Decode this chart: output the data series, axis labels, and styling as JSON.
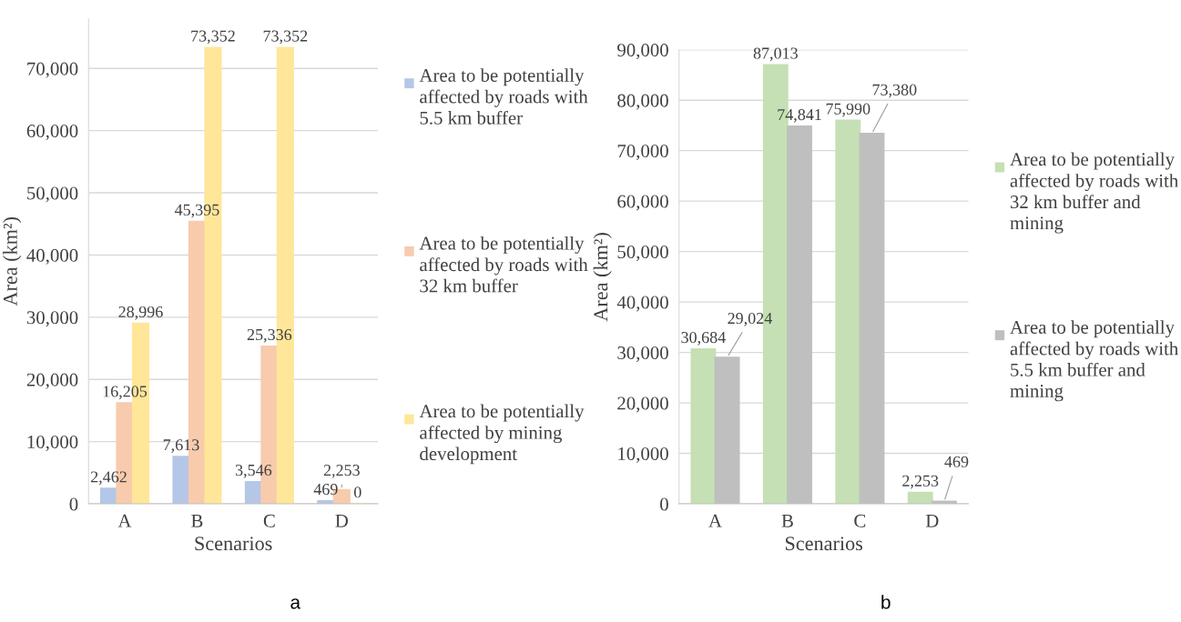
{
  "chart_data": [
    {
      "type": "bar",
      "categories": [
        "A",
        "B",
        "C",
        "D"
      ],
      "xlabel": "Scenarios",
      "ylabel": "Area (km²)",
      "ylim": [
        0,
        78000
      ],
      "yticks": [
        {
          "value": 0,
          "label": "0"
        },
        {
          "value": 10000,
          "label": "10,000"
        },
        {
          "value": 20000,
          "label": "20,000"
        },
        {
          "value": 30000,
          "label": "30,000"
        },
        {
          "value": 40000,
          "label": "40,000"
        },
        {
          "value": 50000,
          "label": "50,000"
        },
        {
          "value": 60000,
          "label": "60,000"
        },
        {
          "value": 70000,
          "label": "70,000"
        }
      ],
      "grid": "y",
      "legend": "right",
      "annotations": [
        "a"
      ],
      "series": [
        {
          "name": "Area to be potentially affected by roads with 5.5 km buffer",
          "color": "#b4c7e7",
          "values": [
            2462,
            7613,
            3546,
            469
          ],
          "value_labels": [
            "2,462",
            "7,613",
            "3,546",
            "469"
          ]
        },
        {
          "name": "Area to be potentially affected by roads with 32 km buffer",
          "color": "#f8cbad",
          "values": [
            16205,
            45395,
            25336,
            2253
          ],
          "value_labels": [
            "16,205",
            "45,395",
            "25,336",
            "2,253"
          ]
        },
        {
          "name": "Area to be potentially affected by mining development",
          "color": "#ffe699",
          "values": [
            28996,
            73352,
            73352,
            0
          ],
          "value_labels": [
            "28,996",
            "73,352",
            "73,352",
            "0"
          ]
        }
      ]
    },
    {
      "type": "bar",
      "categories": [
        "A",
        "B",
        "C",
        "D"
      ],
      "xlabel": "Scenarios",
      "ylabel": "Area (km²)",
      "ylim": [
        0,
        90000
      ],
      "yticks": [
        {
          "value": 0,
          "label": "0"
        },
        {
          "value": 10000,
          "label": "10,000"
        },
        {
          "value": 20000,
          "label": "20,000"
        },
        {
          "value": 30000,
          "label": "30,000"
        },
        {
          "value": 40000,
          "label": "40,000"
        },
        {
          "value": 50000,
          "label": "50,000"
        },
        {
          "value": 60000,
          "label": "60,000"
        },
        {
          "value": 70000,
          "label": "70,000"
        },
        {
          "value": 80000,
          "label": "80,000"
        },
        {
          "value": 90000,
          "label": "90,000"
        }
      ],
      "grid": "y",
      "legend": "right",
      "annotations": [
        "b"
      ],
      "series": [
        {
          "name": "Area to be potentially affected by roads with 32 km buffer and mining",
          "color": "#c5e0b4",
          "values": [
            30684,
            87013,
            75990,
            2253
          ],
          "value_labels": [
            "30,684",
            "87,013",
            "75,990",
            "2,253"
          ]
        },
        {
          "name": "Area to be potentially affected by roads with 5.5 km buffer and mining",
          "color": "#bfbfbf",
          "values": [
            29024,
            74841,
            73380,
            469
          ],
          "value_labels": [
            "29,024",
            "74,841",
            "73,380",
            "469"
          ]
        }
      ]
    }
  ]
}
